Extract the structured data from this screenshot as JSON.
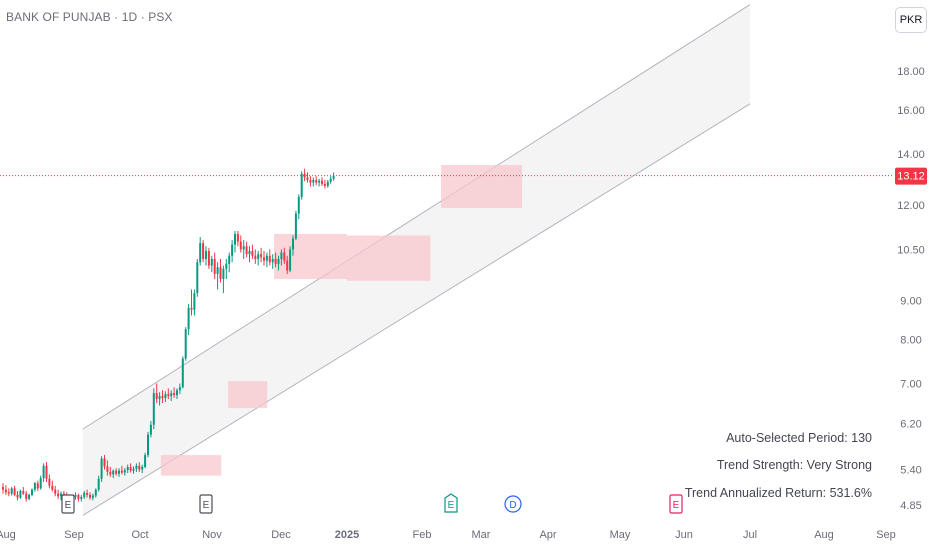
{
  "header": {
    "title": "BANK OF PUNJAB · 1D · PSX",
    "currency": "PKR"
  },
  "stats": [
    "Auto-Selected Period: 130",
    "Trend Strength: Very Strong",
    "Trend Annualized Return: 531.6%"
  ],
  "colors": {
    "up": "#089981",
    "down": "#f23645",
    "channel_fill": "#f2f2f2",
    "channel_line": "#b2b5be",
    "box_fill": "#f8c7cc",
    "last_price": "#f23645",
    "earnings": "#4e4b58",
    "dividend": "#2962ff",
    "future_earnings": "#e91e63"
  },
  "chart_data": {
    "type": "candlestick",
    "title": "BANK OF PUNJAB · 1D · PSX",
    "yscale": "log",
    "ylim": [
      4.6,
      22
    ],
    "y_ticks": [
      "18.00",
      "16.00",
      "14.00",
      "12.00",
      "10.50",
      "9.00",
      "8.00",
      "7.00",
      "6.20",
      "5.40",
      "4.85"
    ],
    "x_ticks": [
      "Aug",
      "Sep",
      "Oct",
      "Nov",
      "Dec",
      "2025",
      "Feb",
      "Mar",
      "Apr",
      "May",
      "Jun",
      "Jul",
      "Aug",
      "Sep"
    ],
    "last_price": 13.12,
    "series": [
      {
        "name": "Aug",
        "values": [
          [
            5.12,
            5.18,
            5.02,
            5.08
          ],
          [
            5.08,
            5.15,
            5.0,
            5.04
          ],
          [
            5.04,
            5.1,
            4.98,
            5.02
          ],
          [
            5.02,
            5.12,
            4.99,
            5.1
          ],
          [
            5.1,
            5.14,
            4.98,
            5.0
          ],
          [
            5.0,
            5.06,
            4.92,
            4.96
          ],
          [
            4.96,
            5.08,
            4.94,
            5.06
          ],
          [
            5.06,
            5.12,
            5.0,
            5.02
          ],
          [
            5.02,
            5.06,
            4.9,
            4.94
          ],
          [
            4.94,
            5.02,
            4.92,
            5.0
          ],
          [
            5.0,
            5.1,
            4.98,
            5.08
          ],
          [
            5.08,
            5.2,
            5.05,
            5.18
          ],
          [
            5.18,
            5.22,
            5.06,
            5.1
          ],
          [
            5.1,
            5.3,
            5.08,
            5.26
          ],
          [
            5.26,
            5.5,
            5.2,
            5.46
          ],
          [
            5.46,
            5.52,
            5.2,
            5.25
          ],
          [
            5.25,
            5.32,
            5.1,
            5.14
          ],
          [
            5.14,
            5.22,
            5.05,
            5.08
          ]
        ]
      },
      {
        "name": "Sep",
        "values": [
          [
            5.08,
            5.14,
            4.98,
            5.02
          ],
          [
            5.02,
            5.08,
            4.94,
            4.98
          ],
          [
            4.98,
            5.05,
            4.92,
            5.02
          ],
          [
            5.02,
            5.06,
            4.95,
            4.98
          ],
          [
            4.98,
            5.04,
            4.92,
            4.96
          ],
          [
            4.96,
            5.0,
            4.88,
            4.92
          ],
          [
            4.92,
            5.0,
            4.88,
            4.97
          ],
          [
            4.97,
            5.04,
            4.93,
            5.0
          ],
          [
            5.0,
            5.02,
            4.9,
            4.94
          ],
          [
            4.94,
            5.0,
            4.9,
            4.97
          ],
          [
            4.97,
            5.06,
            4.94,
            5.03
          ],
          [
            5.03,
            5.08,
            4.96,
            5.0
          ],
          [
            5.0,
            5.04,
            4.93,
            4.96
          ],
          [
            4.96,
            5.02,
            4.92,
            4.99
          ],
          [
            4.99,
            5.1,
            4.96,
            5.08
          ],
          [
            5.08,
            5.3,
            5.05,
            5.25
          ],
          [
            5.25,
            5.62,
            5.2,
            5.58
          ],
          [
            5.58,
            5.64,
            5.4,
            5.45
          ],
          [
            5.45,
            5.55,
            5.3,
            5.36
          ]
        ]
      },
      {
        "name": "Oct",
        "values": [
          [
            5.36,
            5.44,
            5.28,
            5.32
          ],
          [
            5.32,
            5.4,
            5.26,
            5.38
          ],
          [
            5.38,
            5.42,
            5.3,
            5.33
          ],
          [
            5.33,
            5.42,
            5.28,
            5.38
          ],
          [
            5.38,
            5.46,
            5.32,
            5.35
          ],
          [
            5.35,
            5.42,
            5.3,
            5.39
          ],
          [
            5.39,
            5.48,
            5.34,
            5.44
          ],
          [
            5.44,
            5.5,
            5.35,
            5.38
          ],
          [
            5.38,
            5.45,
            5.33,
            5.41
          ],
          [
            5.41,
            5.5,
            5.36,
            5.46
          ],
          [
            5.46,
            5.52,
            5.36,
            5.4
          ],
          [
            5.4,
            5.48,
            5.34,
            5.44
          ],
          [
            5.44,
            5.68,
            5.42,
            5.64
          ],
          [
            5.64,
            6.05,
            5.6,
            6.0
          ],
          [
            6.0,
            6.25,
            5.95,
            6.18
          ]
        ]
      },
      {
        "name": "Nov",
        "values": [
          [
            6.18,
            6.9,
            6.1,
            6.8
          ],
          [
            6.8,
            7.0,
            6.6,
            6.68
          ],
          [
            6.68,
            6.82,
            6.55,
            6.74
          ],
          [
            6.74,
            6.86,
            6.6,
            6.7
          ],
          [
            6.7,
            6.84,
            6.62,
            6.78
          ],
          [
            6.78,
            6.9,
            6.68,
            6.74
          ],
          [
            6.74,
            6.86,
            6.64,
            6.8
          ],
          [
            6.8,
            6.92,
            6.7,
            6.76
          ],
          [
            6.76,
            6.9,
            6.68,
            6.86
          ],
          [
            6.86,
            7.0,
            6.78,
            6.92
          ],
          [
            6.92,
            7.6,
            6.9,
            7.55
          ],
          [
            7.55,
            8.3,
            7.5,
            8.25
          ],
          [
            8.25,
            8.9,
            8.1,
            8.8
          ],
          [
            8.8,
            9.3,
            8.6,
            8.75
          ],
          [
            8.75,
            9.3,
            8.6,
            9.2
          ],
          [
            9.2,
            10.2,
            9.1,
            10.1
          ],
          [
            10.1,
            10.9,
            10.0,
            10.7
          ],
          [
            10.7,
            10.8,
            10.1,
            10.2
          ]
        ]
      },
      {
        "name": "Dec",
        "values": [
          [
            10.2,
            10.6,
            10.0,
            10.45
          ],
          [
            10.45,
            10.55,
            9.9,
            10.0
          ],
          [
            10.0,
            10.3,
            9.8,
            10.2
          ],
          [
            10.2,
            10.4,
            9.6,
            9.75
          ],
          [
            9.75,
            10.1,
            9.3,
            9.95
          ],
          [
            9.95,
            10.2,
            9.5,
            9.6
          ],
          [
            9.6,
            10.0,
            9.2,
            9.9
          ],
          [
            9.9,
            10.2,
            9.6,
            10.05
          ],
          [
            10.05,
            10.4,
            9.8,
            10.3
          ],
          [
            10.3,
            10.8,
            10.1,
            10.65
          ],
          [
            10.65,
            11.1,
            10.4,
            11.0
          ],
          [
            11.0,
            11.1,
            10.6,
            10.75
          ],
          [
            10.75,
            10.95,
            10.4,
            10.5
          ],
          [
            10.5,
            10.8,
            10.2,
            10.6
          ],
          [
            10.6,
            10.75,
            10.25,
            10.35
          ],
          [
            10.35,
            10.6,
            10.1,
            10.45
          ],
          [
            10.45,
            10.65,
            10.2,
            10.3
          ],
          [
            10.3,
            10.5,
            10.05,
            10.2
          ],
          [
            10.2,
            10.45,
            10.0,
            10.35
          ],
          [
            10.35,
            10.55,
            10.1,
            10.25
          ],
          [
            10.25,
            10.45,
            10.0,
            10.15
          ],
          [
            10.15,
            10.4,
            9.95,
            10.3
          ],
          [
            10.3,
            10.5,
            10.0,
            10.1
          ],
          [
            10.1,
            10.35,
            9.9,
            10.2
          ],
          [
            10.2,
            10.4,
            9.95,
            10.05
          ],
          [
            10.05,
            10.3,
            9.85,
            10.2
          ],
          [
            10.2,
            10.5,
            10.0,
            10.4
          ],
          [
            10.4,
            10.55,
            10.05,
            10.15
          ],
          [
            10.15,
            10.3,
            9.75,
            9.85
          ],
          [
            9.85,
            10.6,
            9.8,
            10.5
          ],
          [
            10.5,
            10.95,
            10.3,
            10.85
          ]
        ]
      },
      {
        "name": "Feb",
        "values": [
          [
            10.85,
            11.8,
            10.8,
            11.7
          ],
          [
            11.7,
            12.4,
            11.5,
            12.3
          ],
          [
            12.3,
            13.3,
            12.2,
            13.2
          ],
          [
            13.2,
            13.4,
            12.9,
            13.05
          ],
          [
            13.05,
            13.25,
            12.85,
            12.95
          ],
          [
            12.95,
            13.1,
            12.7,
            12.85
          ],
          [
            12.85,
            13.05,
            12.7,
            12.95
          ],
          [
            12.95,
            13.1,
            12.75,
            12.85
          ],
          [
            12.85,
            13.0,
            12.7,
            12.92
          ],
          [
            12.92,
            13.05,
            12.72,
            12.8
          ],
          [
            12.8,
            12.95,
            12.62,
            12.72
          ],
          [
            12.72,
            12.95,
            12.65,
            12.88
          ],
          [
            12.88,
            13.1,
            12.8,
            13.0
          ],
          [
            13.0,
            13.25,
            12.92,
            13.12
          ]
        ]
      }
    ],
    "channel": {
      "start_date": "2024-09-05",
      "end_date": "2025-07-01",
      "upper": [
        6.1,
        22.0
      ],
      "lower": [
        4.7,
        16.3
      ]
    },
    "consolidation_boxes": [
      {
        "start": "2024-10-10",
        "end": "2024-11-05",
        "low": 5.3,
        "high": 5.64
      },
      {
        "start": "2024-11-08",
        "end": "2024-11-25",
        "low": 6.5,
        "high": 7.05
      },
      {
        "start": "2024-11-28",
        "end": "2025-01-01",
        "low": 9.6,
        "high": 11.0
      },
      {
        "start": "2025-01-01",
        "end": "2025-02-05",
        "low": 9.55,
        "high": 10.95
      },
      {
        "start": "2025-02-10",
        "end": "2025-03-20",
        "low": 11.9,
        "high": 13.55
      }
    ],
    "event_markers": [
      {
        "label": "E",
        "type": "earnings",
        "at": "Sep"
      },
      {
        "label": "E",
        "type": "earnings",
        "at": "Nov"
      },
      {
        "label": "E",
        "type": "earnings",
        "at": "Feb"
      },
      {
        "label": "D",
        "type": "dividend",
        "at": "Mar"
      },
      {
        "label": "E",
        "type": "future_earnings",
        "at": "Jun"
      }
    ]
  }
}
